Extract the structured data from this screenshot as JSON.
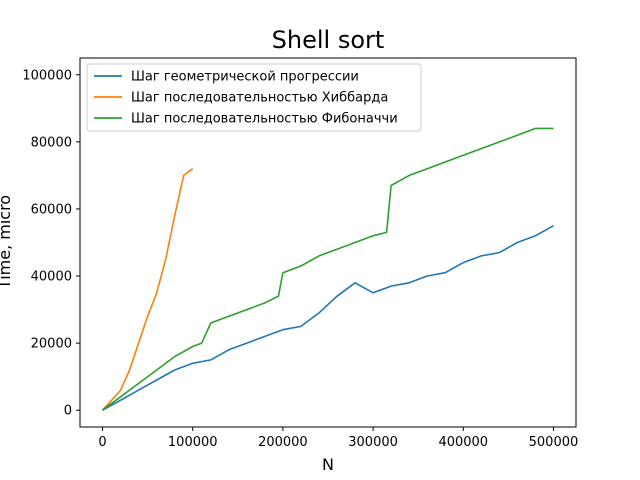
{
  "chart_data": {
    "type": "line",
    "title": "Shell sort",
    "xlabel": "N",
    "ylabel": "Time, micro",
    "xlim": [
      -25000,
      525000
    ],
    "ylim": [
      -5000,
      105000
    ],
    "xticks": [
      0,
      100000,
      200000,
      300000,
      400000,
      500000
    ],
    "xtick_labels": [
      "0",
      "100000",
      "200000",
      "300000",
      "400000",
      "500000"
    ],
    "yticks": [
      0,
      20000,
      40000,
      60000,
      80000,
      100000
    ],
    "ytick_labels": [
      "0",
      "20000",
      "40000",
      "60000",
      "80000",
      "100000"
    ],
    "grid": false,
    "legend": "top-left",
    "series": [
      {
        "name": "Шаг геометрической прогрессии",
        "color": "#1f77b4",
        "x": [
          0,
          20000,
          40000,
          60000,
          80000,
          100000,
          120000,
          140000,
          160000,
          180000,
          200000,
          220000,
          240000,
          260000,
          280000,
          300000,
          320000,
          340000,
          360000,
          380000,
          400000,
          420000,
          440000,
          460000,
          480000,
          500000
        ],
        "y": [
          0,
          3000,
          6000,
          9000,
          12000,
          14000,
          15000,
          18000,
          20000,
          22000,
          24000,
          25000,
          29000,
          34000,
          38000,
          35000,
          37000,
          38000,
          40000,
          41000,
          44000,
          46000,
          47000,
          50000,
          52000,
          55000
        ]
      },
      {
        "name": "Шаг последовательностью Хиббарда",
        "color": "#ff7f0e",
        "x": [
          0,
          10000,
          20000,
          30000,
          40000,
          50000,
          60000,
          70000,
          80000,
          90000,
          100000
        ],
        "y": [
          0,
          3000,
          6000,
          12000,
          20000,
          28000,
          35000,
          45000,
          58000,
          70000,
          72000
        ]
      },
      {
        "name": "Шаг последовательностью Фибоначчи",
        "color": "#2ca02c",
        "x": [
          0,
          20000,
          40000,
          60000,
          80000,
          100000,
          110000,
          120000,
          140000,
          160000,
          180000,
          195000,
          200000,
          220000,
          240000,
          260000,
          280000,
          300000,
          315000,
          320000,
          340000,
          360000,
          380000,
          400000,
          420000,
          440000,
          460000,
          480000,
          500000
        ],
        "y": [
          0,
          4000,
          8000,
          12000,
          16000,
          19000,
          20000,
          26000,
          28000,
          30000,
          32000,
          34000,
          41000,
          43000,
          46000,
          48000,
          50000,
          52000,
          53000,
          67000,
          70000,
          72000,
          74000,
          76000,
          78000,
          80000,
          82000,
          84000,
          84000
        ]
      }
    ]
  }
}
